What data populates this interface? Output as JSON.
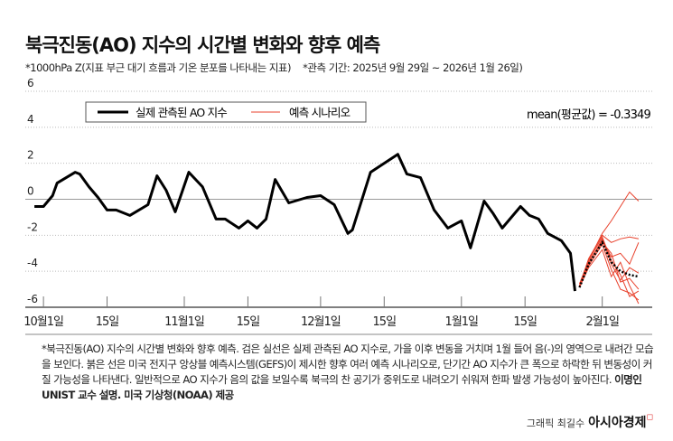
{
  "title": "북극진동(AO) 지수의 시간별 변화와 향후 예측",
  "subtitle_left": "*1000hPa Z(지표 부근 대기 흐름과 기온 분포를 나타내는 지표)",
  "subtitle_right": "*관측 기간: 2025년 9월 29일 ~ 2026년 1월 26일)",
  "notes": {
    "body": "*북극진동(AO) 지수의 시간별 변화와 향후 예측. 검은 실선은 실제 관측된 AO 지수로, 가을 이후 변동을 거치며 1월 들어 음(-)의 영역으로 내려간 모습을 보인다. 붉은 선은 미국 전지구 앙상블 예측시스템(GEFS)이 제시한 향후 여러 예측 시나리오로, 단기간 AO 지수가 큰 폭으로 하락한 뒤 변동성이 커질 가능성을 나타낸다. 일반적으로 AO 지수가 음의 값을 보일수록 북극의 찬 공기가 중위도로 내려오기 쉬워져 한파 발생 가능성이 높아진다. ",
    "source": "이명인 UNIST 교수 설명. 미국 기상청(NOAA) 제공"
  },
  "credit": {
    "author": "그래픽 최길수",
    "brand": "아시아경제"
  },
  "chart_data": {
    "type": "line",
    "ylim": [
      -6,
      6
    ],
    "yticks": [
      6,
      4,
      2,
      0,
      -2,
      -4,
      -6
    ],
    "xlim": [
      "2025-09-27",
      "2026-02-12"
    ],
    "xticks": [
      {
        "date": "2025-10-01",
        "label": "10월1일"
      },
      {
        "date": "2025-10-15",
        "label": "15일"
      },
      {
        "date": "2025-11-01",
        "label": "11월1일"
      },
      {
        "date": "2025-11-15",
        "label": "15일"
      },
      {
        "date": "2025-12-01",
        "label": "12월1일"
      },
      {
        "date": "2025-12-15",
        "label": "15일"
      },
      {
        "date": "2026-01-01",
        "label": "1월1일"
      },
      {
        "date": "2026-01-15",
        "label": "15일"
      },
      {
        "date": "2026-02-01",
        "label": "2월1일"
      }
    ],
    "grid": true,
    "legend_placement": "top-left",
    "annotation": "mean(평균값) = -0.3349",
    "colors": {
      "observed": "#000000",
      "forecast": "#e8412c",
      "mean": "#000000"
    },
    "observed": {
      "name": "실제 관측된 AO 지수",
      "x": [
        "2025-09-29",
        "2025-10-01",
        "2025-10-03",
        "2025-10-04",
        "2025-10-08",
        "2025-10-09",
        "2025-10-11",
        "2025-10-13",
        "2025-10-15",
        "2025-10-17",
        "2025-10-20",
        "2025-10-24",
        "2025-10-26",
        "2025-10-28",
        "2025-10-30",
        "2025-11-02",
        "2025-11-05",
        "2025-11-08",
        "2025-11-10",
        "2025-11-13",
        "2025-11-15",
        "2025-11-17",
        "2025-11-19",
        "2025-11-21",
        "2025-11-24",
        "2025-11-28",
        "2025-12-01",
        "2025-12-04",
        "2025-12-07",
        "2025-12-08",
        "2025-12-12",
        "2025-12-18",
        "2025-12-20",
        "2025-12-23",
        "2025-12-26",
        "2025-12-29",
        "2026-01-01",
        "2026-01-03",
        "2026-01-06",
        "2026-01-08",
        "2026-01-10",
        "2026-01-14",
        "2026-01-16",
        "2026-01-18",
        "2026-01-20",
        "2026-01-23",
        "2026-01-25",
        "2026-01-26"
      ],
      "y": [
        -0.4,
        -0.4,
        0.2,
        0.9,
        1.5,
        1.4,
        0.7,
        0.1,
        -0.6,
        -0.6,
        -0.9,
        -0.3,
        1.3,
        0.5,
        -0.7,
        1.5,
        0.7,
        -1.1,
        -1.1,
        -1.6,
        -1.2,
        -1.6,
        -1.1,
        1.1,
        -0.2,
        0.1,
        0.2,
        -0.3,
        -1.9,
        -1.7,
        1.5,
        2.5,
        1.4,
        1.2,
        -0.6,
        -1.6,
        -1.2,
        -2.7,
        -0.1,
        -0.8,
        -1.6,
        -0.4,
        -0.9,
        -1.1,
        -1.9,
        -2.3,
        -3.0,
        -5.1
      ]
    },
    "forecast": {
      "name": "예측 시나리오",
      "x": [
        "2026-01-27",
        "2026-01-29",
        "2026-02-01",
        "2026-02-03",
        "2026-02-05",
        "2026-02-07",
        "2026-02-09"
      ],
      "scenarios": [
        [
          -4.8,
          -3.4,
          -1.9,
          -1.2,
          -0.4,
          0.4,
          -0.1
        ],
        [
          -4.8,
          -3.3,
          -2.0,
          -2.4,
          -2.2,
          -2.1,
          -2.2
        ],
        [
          -4.7,
          -3.5,
          -2.3,
          -3.2,
          -3.0,
          -3.6,
          -2.4
        ],
        [
          -4.9,
          -3.6,
          -2.2,
          -3.6,
          -4.5,
          -3.8,
          -4.1
        ],
        [
          -4.8,
          -3.7,
          -2.5,
          -3.9,
          -5.0,
          -5.2,
          -5.6
        ],
        [
          -4.7,
          -3.4,
          -2.1,
          -3.4,
          -4.2,
          -5.4,
          -5.1
        ],
        [
          -4.9,
          -3.8,
          -2.8,
          -4.3,
          -3.5,
          -4.8,
          -5.8
        ],
        [
          -4.8,
          -3.5,
          -2.4,
          -3.0,
          -4.6,
          -4.4,
          -5.0
        ]
      ],
      "mean": [
        -4.9,
        -3.6,
        -2.4,
        -3.5,
        -4.0,
        -4.2,
        -4.3
      ]
    }
  }
}
